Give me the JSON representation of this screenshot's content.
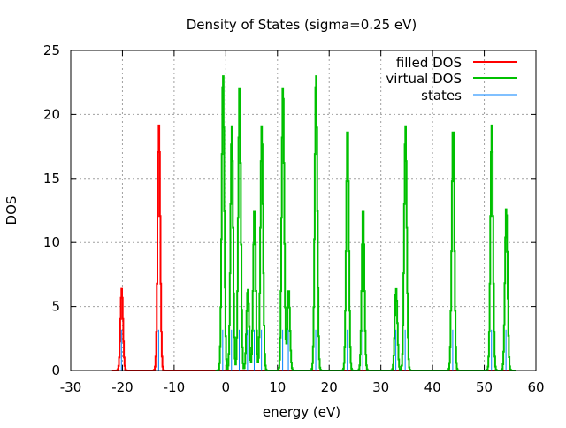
{
  "chart_data": {
    "type": "line",
    "title": "Density of States (sigma=0.25 eV)",
    "xlabel": "energy (eV)",
    "ylabel": "DOS",
    "xlim": [
      -30,
      60
    ],
    "ylim": [
      0,
      25
    ],
    "xticks": [
      "-30",
      "-20",
      "-10",
      "0",
      "10",
      "20",
      "30",
      "40",
      "50",
      "60"
    ],
    "yticks": [
      "0",
      "5",
      "10",
      "15",
      "20",
      "25"
    ],
    "grid": true,
    "legend_position": "top-right",
    "sigma": 0.25,
    "state_marker_height": 3.19,
    "colors": {
      "filled": "#ff0000",
      "virtual": "#00c000",
      "states": "#0080ff"
    },
    "legend": [
      "filled DOS",
      "virtual DOS",
      "states"
    ],
    "filled_states": [
      {
        "energy": -20.2,
        "degeneracy": 2
      },
      {
        "energy": -13.0,
        "degeneracy": 6
      }
    ],
    "virtual_states": [
      {
        "energy": -0.6,
        "degeneracy": 7.3
      },
      {
        "energy": 1.1,
        "degeneracy": 6
      },
      {
        "energy": 2.6,
        "degeneracy": 7
      },
      {
        "energy": 4.2,
        "degeneracy": 2
      },
      {
        "energy": 5.5,
        "degeneracy": 4
      },
      {
        "energy": 6.9,
        "degeneracy": 6
      },
      {
        "energy": 11.0,
        "degeneracy": 7
      },
      {
        "energy": 12.1,
        "degeneracy": 2
      },
      {
        "energy": 17.4,
        "degeneracy": 7.3
      },
      {
        "energy": 23.5,
        "degeneracy": 6
      },
      {
        "energy": 26.5,
        "degeneracy": 4
      },
      {
        "energy": 32.9,
        "degeneracy": 2
      },
      {
        "energy": 34.7,
        "degeneracy": 6
      },
      {
        "energy": 43.9,
        "degeneracy": 6
      },
      {
        "energy": 51.4,
        "degeneracy": 6
      },
      {
        "energy": 54.2,
        "degeneracy": 4
      }
    ]
  }
}
